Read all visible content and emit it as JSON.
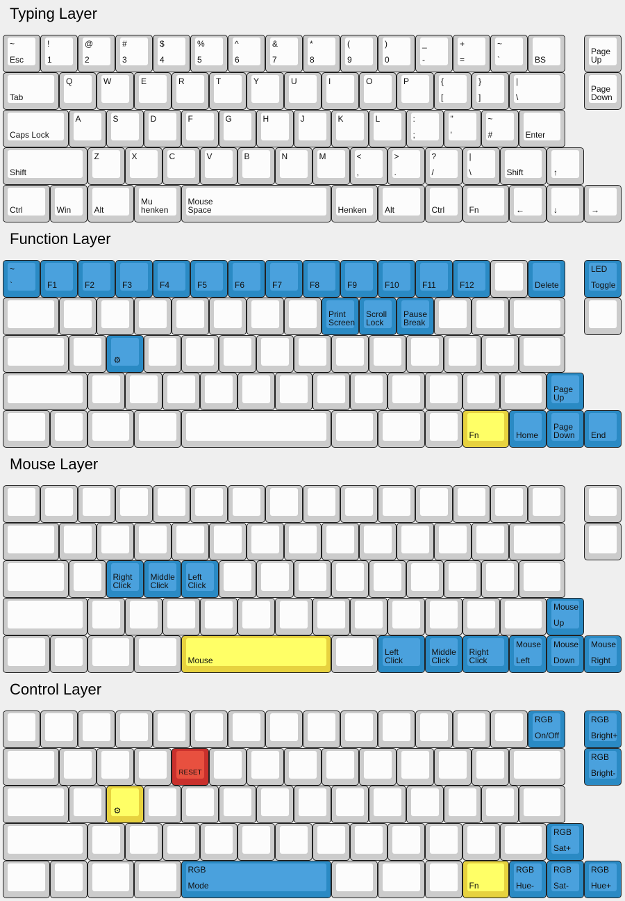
{
  "colors": {
    "w": {
      "outer": "#cccccc",
      "inner": "#fcfcfc"
    },
    "b": {
      "outer": "#2a8ac4",
      "inner": "#4aa1dd"
    },
    "y": {
      "outer": "#e7d23f",
      "inner": "#ffff66"
    },
    "r": {
      "outer": "#c9302c",
      "inner": "#e8503f"
    }
  },
  "layers": [
    {
      "title": "Typing Layer",
      "rows": [
        [
          {
            "t": "~",
            "b": "Esc"
          },
          {
            "t": "!",
            "b": "1"
          },
          {
            "t": "@",
            "b": "2"
          },
          {
            "t": "#",
            "b": "3"
          },
          {
            "t": "$",
            "b": "4"
          },
          {
            "t": "%",
            "b": "5"
          },
          {
            "t": "^",
            "b": "6"
          },
          {
            "t": "&",
            "b": "7"
          },
          {
            "t": "*",
            "b": "8"
          },
          {
            "t": "(",
            "b": "9"
          },
          {
            "t": ")",
            "b": "0"
          },
          {
            "t": "_",
            "b": "-"
          },
          {
            "t": "+",
            "b": "="
          },
          {
            "t": "~",
            "b": "`"
          },
          {
            "b": "BS"
          },
          {
            "b": "Page\nUp"
          }
        ],
        [
          {
            "b": "Tab"
          },
          {
            "t": "Q"
          },
          {
            "t": "W"
          },
          {
            "t": "E"
          },
          {
            "t": "R"
          },
          {
            "t": "T"
          },
          {
            "t": "Y"
          },
          {
            "t": "U"
          },
          {
            "t": "I"
          },
          {
            "t": "O"
          },
          {
            "t": "P"
          },
          {
            "t": "{",
            "b": "["
          },
          {
            "t": "}",
            "b": "]"
          },
          {
            "t": "|",
            "b": "\\"
          },
          {
            "b": "Page\nDown"
          }
        ],
        [
          {
            "b": "Caps Lock"
          },
          {
            "t": "A"
          },
          {
            "t": "S"
          },
          {
            "t": "D"
          },
          {
            "t": "F"
          },
          {
            "t": "G"
          },
          {
            "t": "H"
          },
          {
            "t": "J"
          },
          {
            "t": "K"
          },
          {
            "t": "L"
          },
          {
            "t": ":",
            "b": ";"
          },
          {
            "t": "\"",
            "b": "'"
          },
          {
            "t": "~",
            "b": "#"
          },
          {
            "b": "Enter"
          }
        ],
        [
          {
            "b": "Shift"
          },
          {
            "t": "Z"
          },
          {
            "t": "X"
          },
          {
            "t": "C"
          },
          {
            "t": "V"
          },
          {
            "t": "B"
          },
          {
            "t": "N"
          },
          {
            "t": "M"
          },
          {
            "t": "<",
            "b": ","
          },
          {
            "t": ">",
            "b": "."
          },
          {
            "t": "?",
            "b": "/"
          },
          {
            "t": "|",
            "b": "\\"
          },
          {
            "b": "Shift"
          },
          {
            "b": "↑"
          }
        ],
        [
          {
            "b": "Ctrl"
          },
          {
            "b": "Win"
          },
          {
            "b": "Alt"
          },
          {
            "b": "Mu\nhenken"
          },
          {
            "b": "Mouse\nSpace"
          },
          {
            "b": "Henken"
          },
          {
            "b": "Alt"
          },
          {
            "b": "Ctrl"
          },
          {
            "b": "Fn"
          },
          {
            "b": "←"
          },
          {
            "b": "↓"
          },
          {
            "b": "→"
          }
        ]
      ]
    },
    {
      "title": "Function Layer",
      "rows": [
        [
          {
            "t": "~",
            "b": "`",
            "c": "b"
          },
          {
            "b": "F1",
            "c": "b"
          },
          {
            "b": "F2",
            "c": "b"
          },
          {
            "b": "F3",
            "c": "b"
          },
          {
            "b": "F4",
            "c": "b"
          },
          {
            "b": "F5",
            "c": "b"
          },
          {
            "b": "F6",
            "c": "b"
          },
          {
            "b": "F7",
            "c": "b"
          },
          {
            "b": "F8",
            "c": "b"
          },
          {
            "b": "F9",
            "c": "b"
          },
          {
            "b": "F10",
            "c": "b"
          },
          {
            "b": "F11",
            "c": "b"
          },
          {
            "b": "F12",
            "c": "b"
          },
          {},
          {
            "b": "Delete",
            "c": "b"
          },
          {
            "t": "LED",
            "b": "Toggle",
            "c": "b"
          }
        ],
        [
          {},
          {},
          {},
          {},
          {},
          {},
          {},
          {},
          {
            "b": "Print\nScreen",
            "c": "b"
          },
          {
            "b": "Scroll\nLock",
            "c": "b"
          },
          {
            "b": "Pause\nBreak",
            "c": "b"
          },
          {},
          {},
          {},
          {}
        ],
        [
          {},
          {},
          {
            "icon": "gear-icon",
            "c": "b"
          },
          {},
          {},
          {},
          {},
          {},
          {},
          {},
          {},
          {},
          {},
          {}
        ],
        [
          {},
          {},
          {},
          {},
          {},
          {},
          {},
          {},
          {},
          {},
          {},
          {},
          {},
          {
            "b": "Page\nUp",
            "c": "b"
          }
        ],
        [
          {},
          {},
          {},
          {},
          {},
          {},
          {},
          {},
          {
            "b": "Fn",
            "c": "y"
          },
          {
            "b": "Home",
            "c": "b"
          },
          {
            "b": "Page\nDown",
            "c": "b"
          },
          {
            "b": "End",
            "c": "b"
          }
        ]
      ]
    },
    {
      "title": "Mouse Layer",
      "rows": [
        [
          {},
          {},
          {},
          {},
          {},
          {},
          {},
          {},
          {},
          {},
          {},
          {},
          {},
          {},
          {},
          {}
        ],
        [
          {},
          {},
          {},
          {},
          {},
          {},
          {},
          {},
          {},
          {},
          {},
          {},
          {},
          {},
          {}
        ],
        [
          {},
          {},
          {
            "b": "Right\nClick",
            "c": "b"
          },
          {
            "b": "Middle\nClick",
            "c": "b"
          },
          {
            "b": "Left\nClick",
            "c": "b"
          },
          {},
          {},
          {},
          {},
          {},
          {},
          {},
          {},
          {}
        ],
        [
          {},
          {},
          {},
          {},
          {},
          {},
          {},
          {},
          {},
          {},
          {},
          {},
          {},
          {
            "t": "Mouse",
            "b": "Up",
            "c": "b"
          }
        ],
        [
          {},
          {},
          {},
          {},
          {
            "b": "Mouse",
            "c": "y"
          },
          {},
          {
            "b": "Left\nClick",
            "c": "b"
          },
          {
            "b": "Middle\nClick",
            "c": "b"
          },
          {
            "b": "Right\nClick",
            "c": "b"
          },
          {
            "t": "Mouse",
            "b": "Left",
            "c": "b"
          },
          {
            "t": "Mouse",
            "b": "Down",
            "c": "b"
          },
          {
            "t": "Mouse",
            "b": "Right",
            "c": "b"
          }
        ]
      ]
    },
    {
      "title": "Control Layer",
      "rows": [
        [
          {},
          {},
          {},
          {},
          {},
          {},
          {},
          {},
          {},
          {},
          {},
          {},
          {},
          {},
          {
            "t": "RGB",
            "b": "On/Off",
            "c": "b"
          },
          {
            "t": "RGB",
            "b": "Bright+",
            "c": "b"
          }
        ],
        [
          {},
          {},
          {},
          {},
          {
            "b": "RESET",
            "c": "r",
            "small": true
          },
          {},
          {},
          {},
          {},
          {},
          {},
          {},
          {},
          {},
          {
            "t": "RGB",
            "b": "Bright-",
            "c": "b"
          }
        ],
        [
          {},
          {},
          {
            "icon": "gear-icon",
            "c": "y"
          },
          {},
          {},
          {},
          {},
          {},
          {},
          {},
          {},
          {},
          {},
          {}
        ],
        [
          {},
          {},
          {},
          {},
          {},
          {},
          {},
          {},
          {},
          {},
          {},
          {},
          {},
          {
            "t": "RGB",
            "b": "Sat+",
            "c": "b"
          }
        ],
        [
          {},
          {},
          {},
          {},
          {
            "t": "RGB",
            "b": "Mode",
            "c": "b"
          },
          {},
          {},
          {},
          {
            "b": "Fn",
            "c": "y"
          },
          {
            "t": "RGB",
            "b": "Hue-",
            "c": "b"
          },
          {
            "t": "RGB",
            "b": "Sat-",
            "c": "b"
          },
          {
            "t": "RGB",
            "b": "Hue+",
            "c": "b"
          }
        ]
      ]
    }
  ]
}
